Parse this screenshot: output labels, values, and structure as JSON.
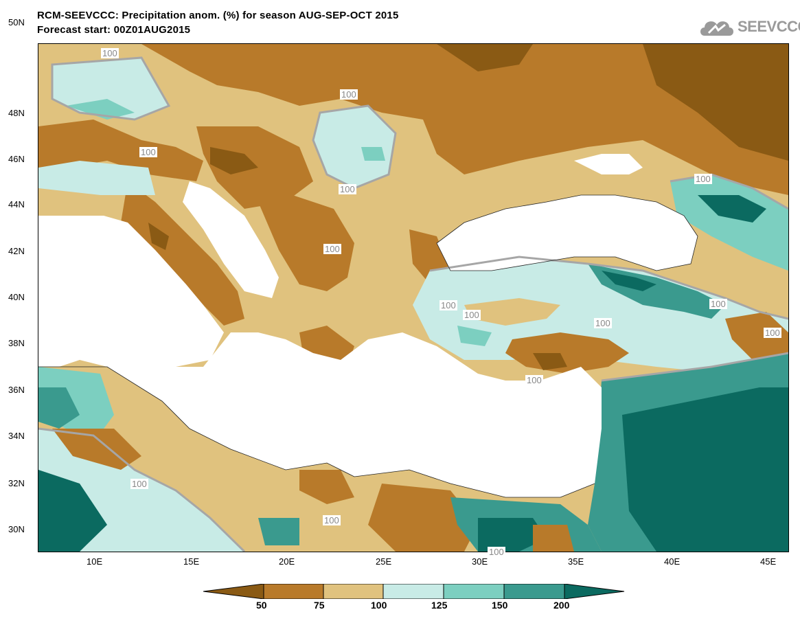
{
  "title": {
    "line1": "RCM-SEEVCCC: Precipitation anom. (%) for season AUG-SEP-OCT 2015",
    "line2": "Forecast start: 00Z01AUG2015"
  },
  "logo": {
    "text": "SEEVCCC",
    "icon": "cloud-icon"
  },
  "axes": {
    "lat_labels": [
      "50N",
      "48N",
      "46N",
      "44N",
      "42N",
      "40N",
      "38N",
      "36N",
      "34N",
      "32N",
      "30N"
    ],
    "lon_labels": [
      "10E",
      "15E",
      "20E",
      "25E",
      "30E",
      "35E",
      "40E",
      "45E"
    ]
  },
  "contour_labels": [
    "100",
    "100",
    "100",
    "100",
    "100",
    "100",
    "100",
    "100",
    "100",
    "100",
    "100",
    "100",
    "100",
    "100",
    "100"
  ],
  "colorbar": {
    "labels": [
      "50",
      "75",
      "100",
      "125",
      "150",
      "200"
    ],
    "colors": [
      "#8a5a14",
      "#b87a2a",
      "#e0c27e",
      "#c8ebe6",
      "#7ccfc0",
      "#3a9a8e",
      "#0b6a60"
    ]
  },
  "colors": {
    "sea": "#ffffff",
    "dry_strong": "#8a5a14",
    "dry": "#b87a2a",
    "dry_light": "#e0c27e",
    "wet_light": "#c8ebe6",
    "wet": "#7ccfc0",
    "wet_strong": "#3a9a8e",
    "wet_very_strong": "#0b6a60",
    "contour_line": "#a6a6a6"
  }
}
